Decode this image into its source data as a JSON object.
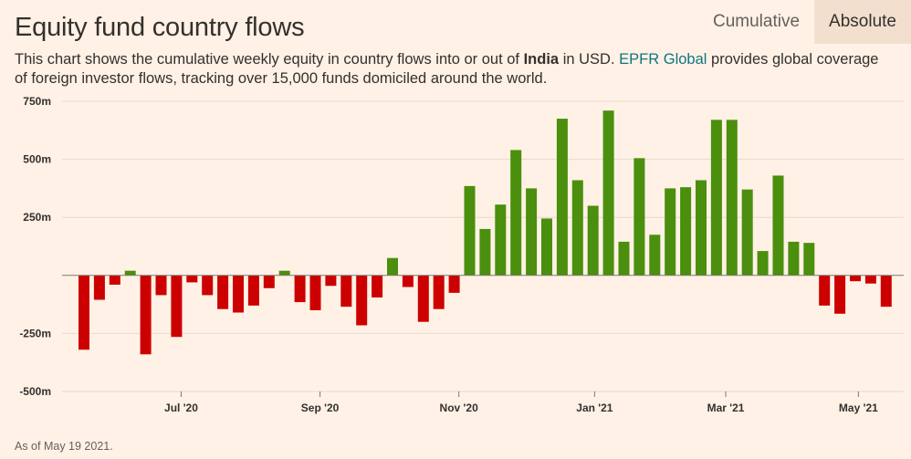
{
  "title": "Equity fund country flows",
  "toggle": {
    "cumulative_label": "Cumulative",
    "absolute_label": "Absolute",
    "active": "Absolute"
  },
  "subtitle": {
    "text_before": "This chart shows the cumulative weekly equity in country flows into or out of ",
    "country": "India",
    "text_middle": " in USD. ",
    "source_link": "EPFR Global",
    "text_after": " provides global coverage of foreign investor flows, tracking over 15,000 funds domiciled around the world."
  },
  "footnote": "As of May 19 2021.",
  "colors": {
    "positive": "#4a8f0d",
    "negative": "#cc0000",
    "grid": "#e6d9ce",
    "zero_line": "#807973",
    "tick_text": "#33302e"
  },
  "chart_data": {
    "type": "bar",
    "unit": "USD",
    "yticks": [
      {
        "value": 750,
        "label": "750m"
      },
      {
        "value": 500,
        "label": "500m"
      },
      {
        "value": 250,
        "label": "250m"
      },
      {
        "value": 0,
        "label": ""
      },
      {
        "value": -250,
        "label": "-250m"
      },
      {
        "value": -500,
        "label": "-500m"
      }
    ],
    "ylim": [
      -500,
      750
    ],
    "xticks": [
      {
        "index": 6.3,
        "label": "Jul '20"
      },
      {
        "index": 15.3,
        "label": "Sep '20"
      },
      {
        "index": 24.3,
        "label": "Nov '20"
      },
      {
        "index": 33.1,
        "label": "Jan '21"
      },
      {
        "index": 41.6,
        "label": "Mar '21"
      },
      {
        "index": 50.2,
        "label": "May '21"
      }
    ],
    "values": [
      -320,
      -105,
      -40,
      20,
      -340,
      -85,
      -265,
      -30,
      -85,
      -145,
      -160,
      -130,
      -55,
      20,
      -115,
      -150,
      -45,
      -135,
      -215,
      -95,
      75,
      -50,
      -200,
      -145,
      -75,
      385,
      200,
      305,
      540,
      375,
      245,
      675,
      410,
      300,
      710,
      145,
      505,
      175,
      375,
      380,
      410,
      670,
      670,
      370,
      105,
      430,
      145,
      140,
      -130,
      -165,
      -25,
      -35,
      -135
    ]
  }
}
